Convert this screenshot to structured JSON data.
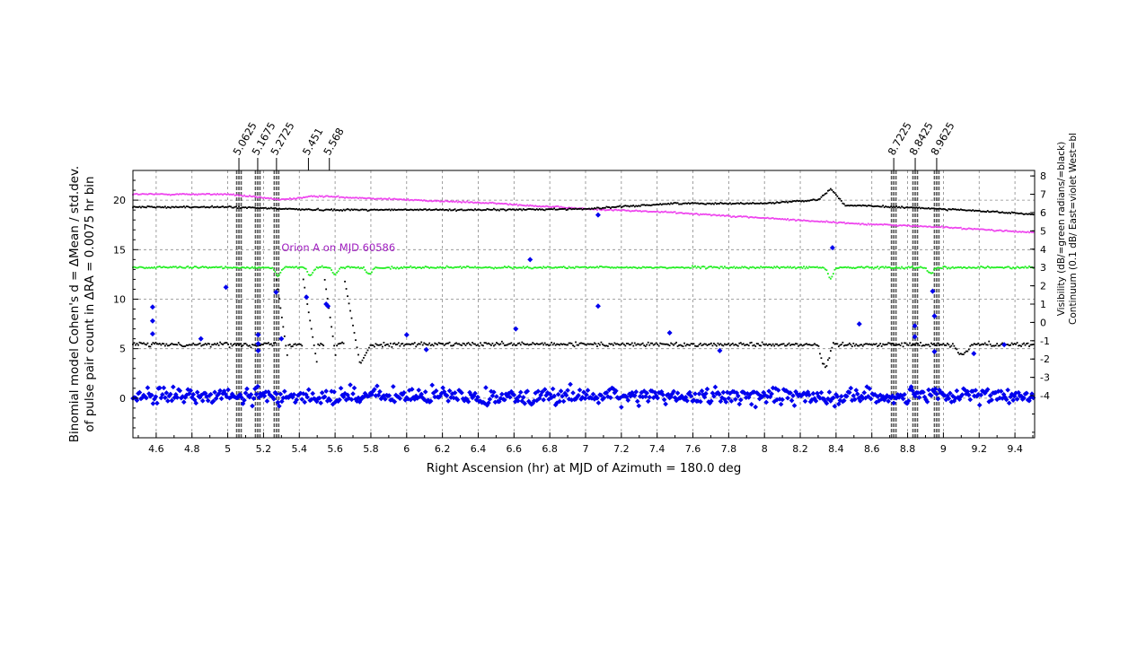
{
  "chart_data": {
    "type": "scatter",
    "xlabel": "Right Ascension (hr) at MJD of Azimuth = 180.0 deg",
    "ylabel_line1": "Binomial model Cohen's d = ΔMean / std.dev.",
    "ylabel_line2": "of pulse pair count in ΔRA = 0.0075 hr bin",
    "y2label_line1": "Visibility (dB/=green  radians/=black)",
    "y2label_line2": "Continuum (0.1 dB/ East=violet  West=bl",
    "annotation": "Orion A on MJD 60586",
    "xlim": [
      4.47,
      9.51
    ],
    "ylim": [
      -4,
      23
    ],
    "y2lim": [
      -6.3,
      8.3
    ],
    "x_ticks": [
      4.6,
      4.8,
      5,
      5.2,
      5.4,
      5.6,
      5.8,
      6,
      6.2,
      6.4,
      6.6,
      6.8,
      7,
      7.2,
      7.4,
      7.6,
      7.8,
      8,
      8.2,
      8.4,
      8.6,
      8.8,
      9,
      9.2,
      9.4
    ],
    "x_tick_labels": [
      "4.6",
      "4.8",
      "5",
      "5.2",
      "5.4",
      "5.6",
      "5.8",
      "6",
      "6.2",
      "6.4",
      "6.6",
      "6.8",
      "7",
      "7.2",
      "7.4",
      "7.6",
      "7.8",
      "8",
      "8.2",
      "8.4",
      "8.6",
      "8.8",
      "9",
      "9.2",
      "9.4"
    ],
    "y_ticks": [
      0,
      5,
      10,
      15,
      20
    ],
    "y_tick_labels": [
      "0",
      "5",
      "10",
      "15",
      "20"
    ],
    "y2_ticks": [
      8,
      7,
      6,
      5,
      4,
      3,
      2,
      1,
      0,
      -1,
      -2,
      -3,
      -4
    ],
    "y2_tick_labels": [
      "8",
      "7",
      "6",
      "5",
      "4",
      "3",
      "2",
      "1",
      "0",
      "-1",
      "-2",
      "-3",
      "-4"
    ],
    "grid": true,
    "source_markers": [
      {
        "label": "5.0625",
        "x": 5.0625
      },
      {
        "label": "5.1675",
        "x": 5.1675
      },
      {
        "label": "5.2725",
        "x": 5.2725
      },
      {
        "label": "5.451",
        "x": 5.451
      },
      {
        "label": "5.568",
        "x": 5.568
      },
      {
        "label": "8.7225",
        "x": 8.7225
      },
      {
        "label": "8.8425",
        "x": 8.8425
      },
      {
        "label": "8.9625",
        "x": 8.9625
      }
    ],
    "dashed_lines_x": [
      5.05,
      5.0625,
      5.075,
      5.155,
      5.1675,
      5.18,
      5.26,
      5.2725,
      5.285,
      8.71,
      8.7225,
      8.735,
      8.83,
      8.8425,
      8.855,
      8.95,
      8.9625,
      8.975
    ],
    "series": [
      {
        "name": "Cohen's d",
        "axis": "left",
        "color": "#0000ee",
        "marker": "diamond",
        "noise_sd": 1.0,
        "peaks": [
          {
            "x": 4.58,
            "y": 9.2
          },
          {
            "x": 4.58,
            "y": 7.8
          },
          {
            "x": 4.58,
            "y": 6.5
          },
          {
            "x": 4.85,
            "y": 6.0
          },
          {
            "x": 4.99,
            "y": 11.2
          },
          {
            "x": 5.17,
            "y": 6.4
          },
          {
            "x": 5.17,
            "y": 5.5
          },
          {
            "x": 5.17,
            "y": 4.8
          },
          {
            "x": 5.27,
            "y": 10.7
          },
          {
            "x": 5.3,
            "y": 6.0
          },
          {
            "x": 5.44,
            "y": 10.2
          },
          {
            "x": 5.55,
            "y": 9.5
          },
          {
            "x": 5.56,
            "y": 9.3
          },
          {
            "x": 6.0,
            "y": 6.4
          },
          {
            "x": 6.11,
            "y": 4.9
          },
          {
            "x": 6.61,
            "y": 7.0
          },
          {
            "x": 6.69,
            "y": 14.0
          },
          {
            "x": 7.07,
            "y": 9.3
          },
          {
            "x": 7.07,
            "y": 18.5
          },
          {
            "x": 7.47,
            "y": 6.6
          },
          {
            "x": 7.75,
            "y": 4.8
          },
          {
            "x": 8.38,
            "y": 15.2
          },
          {
            "x": 8.53,
            "y": 7.5
          },
          {
            "x": 8.84,
            "y": 7.3
          },
          {
            "x": 8.84,
            "y": 6.2
          },
          {
            "x": 8.94,
            "y": 10.8
          },
          {
            "x": 8.95,
            "y": 8.3
          },
          {
            "x": 8.95,
            "y": 4.7
          },
          {
            "x": 9.34,
            "y": 5.4
          },
          {
            "x": 9.17,
            "y": 4.5
          }
        ]
      },
      {
        "name": "Continuum East",
        "axis": "right",
        "color": "#ee44ee",
        "profile": [
          [
            4.47,
            7.0
          ],
          [
            5.0,
            7.0
          ],
          [
            5.3,
            6.7
          ],
          [
            5.5,
            6.9
          ],
          [
            6.0,
            6.7
          ],
          [
            6.5,
            6.5
          ],
          [
            7.0,
            6.2
          ],
          [
            7.5,
            6.0
          ],
          [
            8.0,
            5.7
          ],
          [
            8.5,
            5.4
          ],
          [
            9.0,
            5.2
          ],
          [
            9.51,
            4.9
          ]
        ]
      },
      {
        "name": "Continuum West",
        "axis": "right",
        "color": "#000000",
        "profile": [
          [
            4.47,
            6.3
          ],
          [
            5.0,
            6.3
          ],
          [
            5.5,
            6.15
          ],
          [
            6.0,
            6.15
          ],
          [
            6.5,
            6.15
          ],
          [
            7.0,
            6.2
          ],
          [
            7.5,
            6.5
          ],
          [
            8.0,
            6.5
          ],
          [
            8.3,
            6.7
          ],
          [
            8.37,
            7.3
          ],
          [
            8.45,
            6.4
          ],
          [
            9.0,
            6.2
          ],
          [
            9.51,
            5.9
          ]
        ]
      },
      {
        "name": "Visibility dB",
        "axis": "right",
        "color": "#22ee22",
        "base": 3.0,
        "dips": [
          [
            5.28,
            0.45
          ],
          [
            5.46,
            0.45
          ],
          [
            5.6,
            0.4
          ],
          [
            5.79,
            0.4
          ],
          [
            8.37,
            0.6
          ],
          [
            8.93,
            0.3
          ]
        ]
      },
      {
        "name": "Visibility radians",
        "axis": "right",
        "color": "#000000",
        "base": -1.2
      }
    ]
  }
}
